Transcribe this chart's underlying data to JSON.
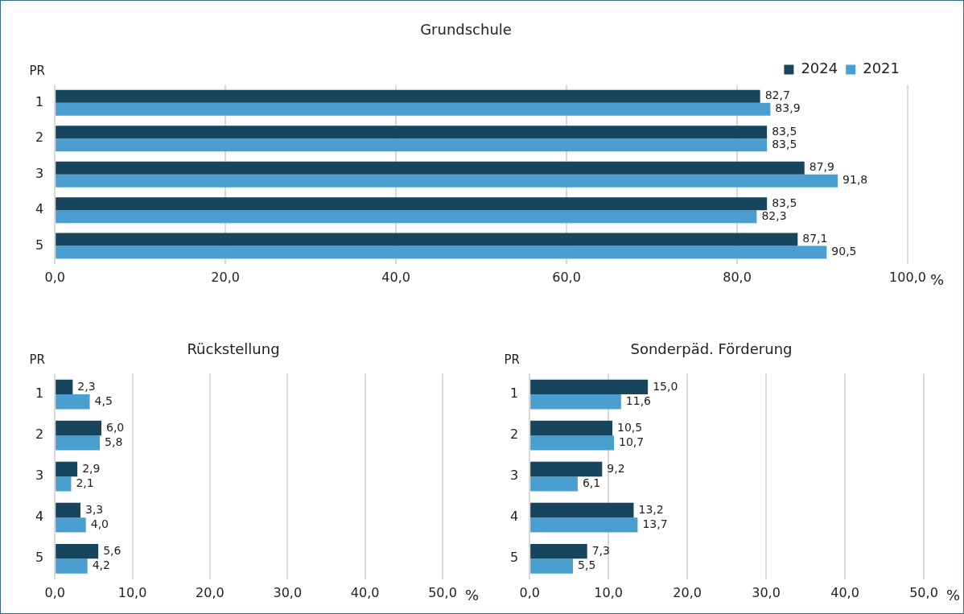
{
  "chart_data": [
    {
      "type": "bar",
      "orientation": "horizontal",
      "title": "Grundschule",
      "ylabel": "PR",
      "xlabel": "%",
      "categories": [
        "1",
        "2",
        "3",
        "4",
        "5"
      ],
      "legend": "top right",
      "grid": "x",
      "xlim": [
        0,
        100
      ],
      "xticks": [
        {
          "value": 0,
          "label": "0,0"
        },
        {
          "value": 20,
          "label": "20,0"
        },
        {
          "value": 40,
          "label": "40,0"
        },
        {
          "value": 60,
          "label": "60,0"
        },
        {
          "value": 80,
          "label": "80,0"
        },
        {
          "value": 100,
          "label": "100,0"
        }
      ],
      "series": [
        {
          "name": "2024",
          "color": "#17455e",
          "values": [
            82.7,
            83.5,
            87.9,
            83.5,
            87.1
          ],
          "value_labels": [
            "82,7",
            "83,5",
            "87,9",
            "83,5",
            "87,1"
          ]
        },
        {
          "name": "2021",
          "color": "#4a9fd0",
          "values": [
            83.9,
            83.5,
            91.8,
            82.3,
            90.5
          ],
          "value_labels": [
            "83,9",
            "83,5",
            "91,8",
            "82,3",
            "90,5"
          ]
        }
      ]
    },
    {
      "type": "bar",
      "orientation": "horizontal",
      "title": "Rückstellung",
      "ylabel": "PR",
      "xlabel": "%",
      "categories": [
        "1",
        "2",
        "3",
        "4",
        "5"
      ],
      "grid": "x",
      "xlim": [
        0,
        50
      ],
      "xticks": [
        {
          "value": 0,
          "label": "0,0"
        },
        {
          "value": 10,
          "label": "10,0"
        },
        {
          "value": 20,
          "label": "20,0"
        },
        {
          "value": 30,
          "label": "30,0"
        },
        {
          "value": 40,
          "label": "40,0"
        },
        {
          "value": 50,
          "label": "50,0"
        }
      ],
      "series": [
        {
          "color": "#17455e",
          "values": [
            2.3,
            6.0,
            2.9,
            3.3,
            5.6
          ],
          "value_labels": [
            "2,3",
            "6,0",
            "2,9",
            "3,3",
            "5,6"
          ]
        },
        {
          "color": "#4a9fd0",
          "values": [
            4.5,
            5.8,
            2.1,
            4.0,
            4.2
          ],
          "value_labels": [
            "4,5",
            "5,8",
            "2,1",
            "4,0",
            "4,2"
          ]
        }
      ]
    },
    {
      "type": "bar",
      "orientation": "horizontal",
      "title": "Sonderpäd. Förderung",
      "ylabel": "PR",
      "xlabel": "%",
      "categories": [
        "1",
        "2",
        "3",
        "4",
        "5"
      ],
      "grid": "x",
      "xlim": [
        0,
        50
      ],
      "xticks": [
        {
          "value": 0,
          "label": "0,0"
        },
        {
          "value": 10,
          "label": "10,0"
        },
        {
          "value": 20,
          "label": "20,0"
        },
        {
          "value": 30,
          "label": "30,0"
        },
        {
          "value": 40,
          "label": "40,0"
        },
        {
          "value": 50,
          "label": "50,0"
        }
      ],
      "series": [
        {
          "color": "#17455e",
          "values": [
            15.0,
            10.5,
            9.2,
            13.2,
            7.3
          ],
          "value_labels": [
            "15,0",
            "10,5",
            "9,2",
            "13,2",
            "7,3"
          ]
        },
        {
          "color": "#4a9fd0",
          "values": [
            11.6,
            10.7,
            6.1,
            13.7,
            5.5
          ],
          "value_labels": [
            "11,6",
            "10,7",
            "6,1",
            "13,7",
            "5,5"
          ]
        }
      ]
    }
  ]
}
